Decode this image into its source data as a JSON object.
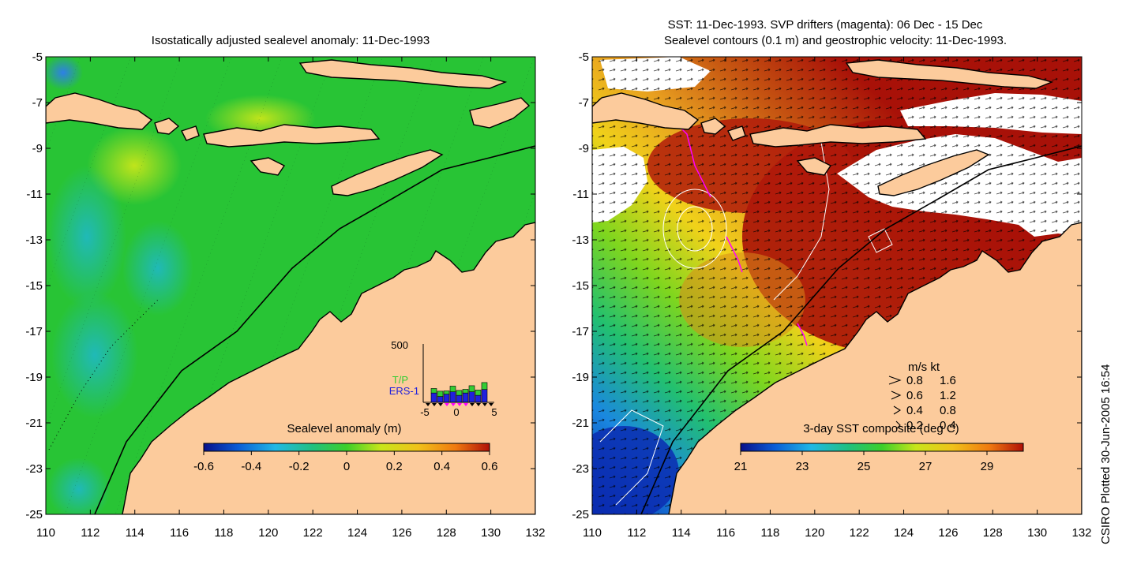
{
  "left_panel": {
    "title": "Isostatically adjusted sealevel anomaly: 11-Dec-1993",
    "x_ticks": [
      "110",
      "112",
      "114",
      "116",
      "118",
      "120",
      "122",
      "124",
      "126",
      "128",
      "130",
      "132"
    ],
    "y_ticks": [
      "-5",
      "-7",
      "-9",
      "-11",
      "-13",
      "-15",
      "-17",
      "-19",
      "-21",
      "-23",
      "-25"
    ],
    "colorbar": {
      "label": "Sealevel anomaly (m)",
      "ticks": [
        "-0.6",
        "-0.4",
        "-0.2",
        "0",
        "0.2",
        "0.4",
        "0.6"
      ],
      "stops": [
        "#08108a",
        "#0a5cd6",
        "#1fb8e6",
        "#20c080",
        "#3ccf2a",
        "#c8e61a",
        "#f0c21a",
        "#f07a10",
        "#b01008"
      ]
    },
    "inset": {
      "y_max_label": "500",
      "x_ticks": [
        "-5",
        "0",
        "5"
      ],
      "legend_tp": "T/P",
      "legend_ers": "ERS-1",
      "tp_color": "#33cc33",
      "ers_color": "#2020dd",
      "marker_color": "#ff00ff",
      "days": [
        -5,
        -4,
        -3,
        -2,
        -1,
        0,
        1,
        2,
        3,
        4,
        5
      ],
      "tp_counts": [
        0,
        110,
        130,
        80,
        140,
        120,
        90,
        150,
        130,
        170,
        0
      ],
      "ers_counts": [
        0,
        80,
        50,
        70,
        90,
        60,
        80,
        90,
        60,
        110,
        0
      ]
    }
  },
  "right_panel": {
    "title_line1": "SST: 11-Dec-1993. SVP drifters (magenta): 06 Dec - 15 Dec",
    "title_line2": "Sealevel contours (0.1 m) and geostrophic velocity: 11-Dec-1993.",
    "x_ticks": [
      "110",
      "112",
      "114",
      "116",
      "118",
      "120",
      "122",
      "124",
      "126",
      "128",
      "130",
      "132"
    ],
    "y_ticks": [
      "-5",
      "-7",
      "-9",
      "-11",
      "-13",
      "-15",
      "-17",
      "-19",
      "-21",
      "-23",
      "-25"
    ],
    "colorbar": {
      "label": "3-day SST composite (deg C)",
      "ticks": [
        "21",
        "23",
        "25",
        "27",
        "29"
      ],
      "stops": [
        "#08108a",
        "#0a5cd6",
        "#1fb8e6",
        "#20c080",
        "#3ccf2a",
        "#c8e61a",
        "#f0c21a",
        "#f07a10",
        "#b01008"
      ]
    },
    "speed_legend": {
      "header": "m/s  kt",
      "rows": [
        {
          "ms": "0.8",
          "kt": "1.6"
        },
        {
          "ms": "0.6",
          "kt": "1.2"
        },
        {
          "ms": "0.4",
          "kt": "0.8"
        },
        {
          "ms": "0.2",
          "kt": "0.4"
        }
      ]
    }
  },
  "colors": {
    "land": "#fccb9c",
    "coast": "#000000",
    "sla_ocean": "#28c435",
    "sst_warm": "#a81108",
    "cloud": "#ffffff"
  },
  "credit": "CSIRO Plotted 30-Jun-2005 16:54"
}
